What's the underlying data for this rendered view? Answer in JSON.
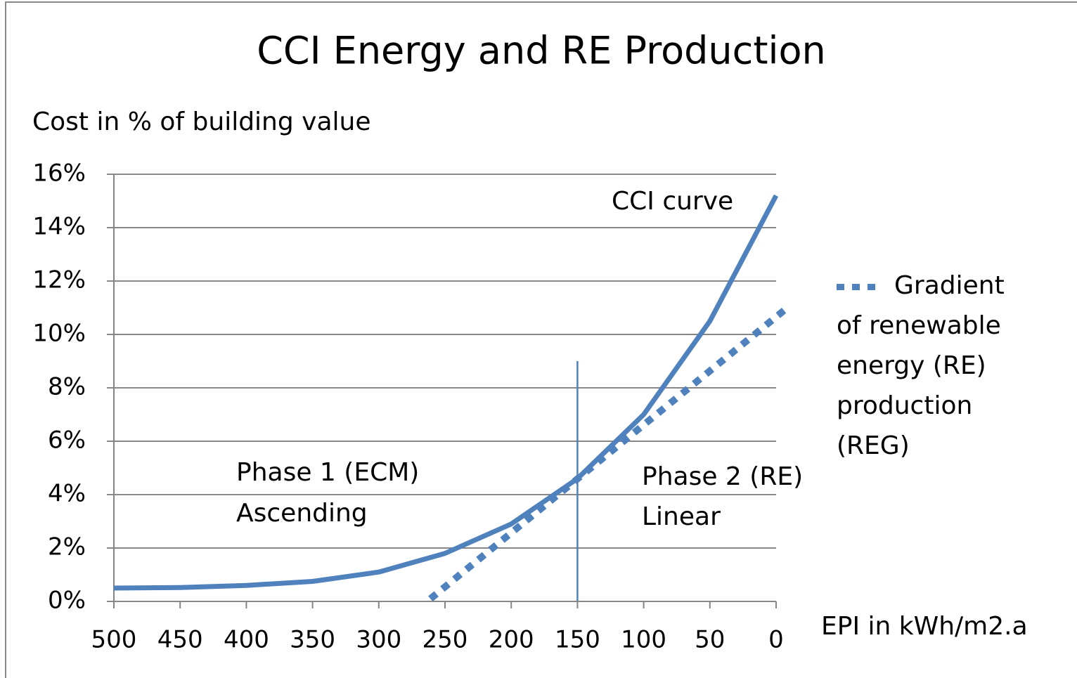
{
  "chart_data": {
    "type": "line",
    "title": "CCI Energy and RE Production",
    "y_label": "Cost in % of building value",
    "x_label": "EPI in kWh/m2.a",
    "xlim": [
      500,
      0
    ],
    "xticks": [
      500,
      450,
      400,
      350,
      300,
      250,
      200,
      150,
      100,
      50,
      0
    ],
    "ylim": [
      0,
      16
    ],
    "yticks": [
      {
        "value": 0,
        "label": "0%"
      },
      {
        "value": 2,
        "label": "2%"
      },
      {
        "value": 4,
        "label": "4%"
      },
      {
        "value": 6,
        "label": "6%"
      },
      {
        "value": 8,
        "label": "8%"
      },
      {
        "value": 10,
        "label": "10%"
      },
      {
        "value": 12,
        "label": "12%"
      },
      {
        "value": 14,
        "label": "14%"
      },
      {
        "value": 16,
        "label": "16%"
      }
    ],
    "grid": true,
    "series": [
      {
        "name": "CCI curve",
        "color": "#4f81bd",
        "style": "solid",
        "x": [
          500,
          450,
          400,
          350,
          300,
          250,
          200,
          150,
          100,
          50,
          0
        ],
        "values": [
          0.5,
          0.52,
          0.6,
          0.75,
          1.1,
          1.8,
          2.9,
          4.6,
          7.0,
          10.5,
          15.2
        ]
      },
      {
        "name": "Gradient of renewable energy (RE) production (REG)",
        "color": "#4f81bd",
        "style": "dotted",
        "x": [
          261,
          -6
        ],
        "values": [
          0.1,
          10.9
        ]
      }
    ],
    "reference_line": {
      "x": 150,
      "y": [
        0,
        9
      ],
      "color": "#4f81bd"
    },
    "annotations": [
      "Phase 1 (ECM)",
      "Ascending",
      "Phase 2 (RE)",
      "Linear"
    ]
  }
}
